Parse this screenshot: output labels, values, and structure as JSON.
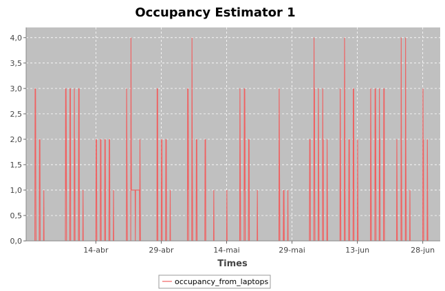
{
  "chart_data": {
    "type": "line",
    "title": "Occupancy Estimator 1",
    "xlabel": "Times",
    "ylabel": "",
    "x_tick_labels": [
      "14-abr",
      "29-abr",
      "14-mai",
      "29-mai",
      "13-jun",
      "28-jun"
    ],
    "y_tick_labels": [
      "0,0",
      "0,5",
      "1,0",
      "1,5",
      "2,0",
      "2,5",
      "3,0",
      "3,5",
      "4,0"
    ],
    "ylim": [
      0,
      4.2
    ],
    "xlim": [
      "2014-03-29",
      "2014-07-02"
    ],
    "grid": true,
    "legend_position": "bottom",
    "background_color": "#c0c0c0",
    "series": [
      {
        "name": "occupancy_from_laptops",
        "color": "#f06060",
        "points": [
          [
            "2014-03-29",
            0
          ],
          [
            "2014-03-30",
            0
          ],
          [
            "2014-03-31",
            0
          ],
          [
            "2014-03-31",
            3
          ],
          [
            "2014-03-31",
            2
          ],
          [
            "2014-03-31",
            3
          ],
          [
            "2014-03-31",
            1
          ],
          [
            "2014-03-31",
            0
          ],
          [
            "2014-04-01",
            0
          ],
          [
            "2014-04-01",
            2
          ],
          [
            "2014-04-01",
            1
          ],
          [
            "2014-04-01",
            2
          ],
          [
            "2014-04-01",
            0
          ],
          [
            "2014-04-02",
            0
          ],
          [
            "2014-04-02",
            1
          ],
          [
            "2014-04-02",
            0
          ],
          [
            "2014-04-07",
            0
          ],
          [
            "2014-04-07",
            3
          ],
          [
            "2014-04-07",
            1
          ],
          [
            "2014-04-07",
            3
          ],
          [
            "2014-04-07",
            2
          ],
          [
            "2014-04-07",
            0
          ],
          [
            "2014-04-08",
            0
          ],
          [
            "2014-04-08",
            3
          ],
          [
            "2014-04-08",
            1
          ],
          [
            "2014-04-08",
            3
          ],
          [
            "2014-04-08",
            0
          ],
          [
            "2014-04-09",
            0
          ],
          [
            "2014-04-09",
            3
          ],
          [
            "2014-04-09",
            1
          ],
          [
            "2014-04-09",
            2
          ],
          [
            "2014-04-09",
            0
          ],
          [
            "2014-04-10",
            0
          ],
          [
            "2014-04-10",
            3
          ],
          [
            "2014-04-10",
            1
          ],
          [
            "2014-04-10",
            3
          ],
          [
            "2014-04-10",
            0
          ],
          [
            "2014-04-11",
            0
          ],
          [
            "2014-04-11",
            1
          ],
          [
            "2014-04-11",
            0
          ],
          [
            "2014-04-14",
            0
          ],
          [
            "2014-04-14",
            2
          ],
          [
            "2014-04-14",
            1
          ],
          [
            "2014-04-14",
            2
          ],
          [
            "2014-04-14",
            0
          ],
          [
            "2014-04-15",
            0
          ],
          [
            "2014-04-15",
            2
          ],
          [
            "2014-04-15",
            1
          ],
          [
            "2014-04-15",
            2
          ],
          [
            "2014-04-15",
            0
          ],
          [
            "2014-04-16",
            0
          ],
          [
            "2014-04-16",
            2
          ],
          [
            "2014-04-16",
            1
          ],
          [
            "2014-04-16",
            2
          ],
          [
            "2014-04-16",
            0
          ],
          [
            "2014-04-17",
            0
          ],
          [
            "2014-04-17",
            2
          ],
          [
            "2014-04-17",
            1
          ],
          [
            "2014-04-17",
            2
          ],
          [
            "2014-04-17",
            0
          ],
          [
            "2014-04-18",
            0
          ],
          [
            "2014-04-18",
            1
          ],
          [
            "2014-04-18",
            0
          ],
          [
            "2014-04-21",
            0
          ],
          [
            "2014-04-21",
            3
          ],
          [
            "2014-04-21",
            2
          ],
          [
            "2014-04-21",
            1
          ],
          [
            "2014-04-21",
            0
          ],
          [
            "2014-04-22",
            0
          ],
          [
            "2014-04-22",
            4
          ],
          [
            "2014-04-22",
            2
          ],
          [
            "2014-04-22",
            1
          ],
          [
            "2014-04-23",
            1
          ],
          [
            "2014-04-23",
            0
          ],
          [
            "2014-04-23",
            1
          ],
          [
            "2014-04-24",
            1
          ],
          [
            "2014-04-24",
            0
          ],
          [
            "2014-04-24",
            2
          ],
          [
            "2014-04-24",
            1
          ],
          [
            "2014-04-24",
            0
          ],
          [
            "2014-04-28",
            0
          ],
          [
            "2014-04-28",
            3
          ],
          [
            "2014-04-28",
            1
          ],
          [
            "2014-04-28",
            3
          ],
          [
            "2014-04-28",
            0
          ],
          [
            "2014-04-29",
            0
          ],
          [
            "2014-04-29",
            2
          ],
          [
            "2014-04-29",
            1
          ],
          [
            "2014-04-29",
            2
          ],
          [
            "2014-04-29",
            0
          ],
          [
            "2014-04-30",
            0
          ],
          [
            "2014-04-30",
            2
          ],
          [
            "2014-04-30",
            1
          ],
          [
            "2014-04-30",
            2
          ],
          [
            "2014-04-30",
            0
          ],
          [
            "2014-05-01",
            0
          ],
          [
            "2014-05-01",
            1
          ],
          [
            "2014-05-01",
            0
          ],
          [
            "2014-05-05",
            0
          ],
          [
            "2014-05-05",
            3
          ],
          [
            "2014-05-05",
            1
          ],
          [
            "2014-05-05",
            3
          ],
          [
            "2014-05-05",
            2
          ],
          [
            "2014-05-05",
            0
          ],
          [
            "2014-05-06",
            0
          ],
          [
            "2014-05-06",
            4
          ],
          [
            "2014-05-06",
            2
          ],
          [
            "2014-05-06",
            1
          ],
          [
            "2014-05-06",
            0
          ],
          [
            "2014-05-07",
            0
          ],
          [
            "2014-05-07",
            2
          ],
          [
            "2014-05-07",
            1
          ],
          [
            "2014-05-07",
            2
          ],
          [
            "2014-05-07",
            0
          ],
          [
            "2014-05-09",
            0
          ],
          [
            "2014-05-09",
            2
          ],
          [
            "2014-05-09",
            1
          ],
          [
            "2014-05-09",
            2
          ],
          [
            "2014-05-09",
            0
          ],
          [
            "2014-05-11",
            0
          ],
          [
            "2014-05-11",
            1
          ],
          [
            "2014-05-11",
            0
          ],
          [
            "2014-05-14",
            0
          ],
          [
            "2014-05-14",
            1
          ],
          [
            "2014-05-14",
            0
          ],
          [
            "2014-05-17",
            0
          ],
          [
            "2014-05-17",
            3
          ],
          [
            "2014-05-17",
            2
          ],
          [
            "2014-05-17",
            1
          ],
          [
            "2014-05-17",
            0
          ],
          [
            "2014-05-18",
            0
          ],
          [
            "2014-05-18",
            3
          ],
          [
            "2014-05-18",
            1
          ],
          [
            "2014-05-18",
            3
          ],
          [
            "2014-05-18",
            2
          ],
          [
            "2014-05-18",
            0
          ],
          [
            "2014-05-19",
            0
          ],
          [
            "2014-05-19",
            2
          ],
          [
            "2014-05-19",
            1
          ],
          [
            "2014-05-19",
            2
          ],
          [
            "2014-05-19",
            0
          ],
          [
            "2014-05-21",
            0
          ],
          [
            "2014-05-21",
            1
          ],
          [
            "2014-05-21",
            0
          ],
          [
            "2014-05-26",
            0
          ],
          [
            "2014-05-26",
            3
          ],
          [
            "2014-05-26",
            2
          ],
          [
            "2014-05-26",
            1
          ],
          [
            "2014-05-26",
            0
          ],
          [
            "2014-05-27",
            0
          ],
          [
            "2014-05-27",
            1
          ],
          [
            "2014-05-27",
            0
          ],
          [
            "2014-05-27",
            1
          ],
          [
            "2014-05-27",
            0
          ],
          [
            "2014-05-28",
            0
          ],
          [
            "2014-05-28",
            1
          ],
          [
            "2014-05-28",
            0
          ],
          [
            "2014-06-02",
            0
          ],
          [
            "2014-06-02",
            2
          ],
          [
            "2014-06-02",
            1
          ],
          [
            "2014-06-02",
            2
          ],
          [
            "2014-06-02",
            0
          ],
          [
            "2014-06-03",
            0
          ],
          [
            "2014-06-03",
            4
          ],
          [
            "2014-06-03",
            2
          ],
          [
            "2014-06-03",
            3
          ],
          [
            "2014-06-03",
            1
          ],
          [
            "2014-06-03",
            0
          ],
          [
            "2014-06-04",
            0
          ],
          [
            "2014-06-04",
            3
          ],
          [
            "2014-06-04",
            2
          ],
          [
            "2014-06-04",
            1
          ],
          [
            "2014-06-04",
            0
          ],
          [
            "2014-06-05",
            0
          ],
          [
            "2014-06-05",
            3
          ],
          [
            "2014-06-05",
            1
          ],
          [
            "2014-06-05",
            2
          ],
          [
            "2014-06-05",
            0
          ],
          [
            "2014-06-06",
            0
          ],
          [
            "2014-06-06",
            2
          ],
          [
            "2014-06-06",
            1
          ],
          [
            "2014-06-06",
            0
          ],
          [
            "2014-06-09",
            0
          ],
          [
            "2014-06-09",
            3
          ],
          [
            "2014-06-09",
            2
          ],
          [
            "2014-06-09",
            1
          ],
          [
            "2014-06-09",
            0
          ],
          [
            "2014-06-10",
            0
          ],
          [
            "2014-06-10",
            4
          ],
          [
            "2014-06-10",
            3
          ],
          [
            "2014-06-10",
            1
          ],
          [
            "2014-06-10",
            0
          ],
          [
            "2014-06-11",
            0
          ],
          [
            "2014-06-11",
            2
          ],
          [
            "2014-06-11",
            1
          ],
          [
            "2014-06-11",
            2
          ],
          [
            "2014-06-11",
            0
          ],
          [
            "2014-06-12",
            0
          ],
          [
            "2014-06-12",
            3
          ],
          [
            "2014-06-12",
            1
          ],
          [
            "2014-06-12",
            3
          ],
          [
            "2014-06-12",
            0
          ],
          [
            "2014-06-13",
            0
          ],
          [
            "2014-06-13",
            2
          ],
          [
            "2014-06-13",
            1
          ],
          [
            "2014-06-13",
            0
          ],
          [
            "2014-06-16",
            0
          ],
          [
            "2014-06-16",
            3
          ],
          [
            "2014-06-16",
            2
          ],
          [
            "2014-06-16",
            1
          ],
          [
            "2014-06-16",
            0
          ],
          [
            "2014-06-17",
            0
          ],
          [
            "2014-06-17",
            3
          ],
          [
            "2014-06-17",
            1
          ],
          [
            "2014-06-17",
            3
          ],
          [
            "2014-06-17",
            2
          ],
          [
            "2014-06-17",
            0
          ],
          [
            "2014-06-18",
            0
          ],
          [
            "2014-06-18",
            3
          ],
          [
            "2014-06-18",
            1
          ],
          [
            "2014-06-18",
            2
          ],
          [
            "2014-06-18",
            0
          ],
          [
            "2014-06-19",
            0
          ],
          [
            "2014-06-19",
            3
          ],
          [
            "2014-06-19",
            1
          ],
          [
            "2014-06-19",
            3
          ],
          [
            "2014-06-19",
            0
          ],
          [
            "2014-06-22",
            0
          ],
          [
            "2014-06-22",
            2
          ],
          [
            "2014-06-22",
            1
          ],
          [
            "2014-06-22",
            0
          ],
          [
            "2014-06-23",
            0
          ],
          [
            "2014-06-23",
            4
          ],
          [
            "2014-06-23",
            2
          ],
          [
            "2014-06-23",
            1
          ],
          [
            "2014-06-23",
            0
          ],
          [
            "2014-06-24",
            0
          ],
          [
            "2014-06-24",
            4
          ],
          [
            "2014-06-24",
            2
          ],
          [
            "2014-06-24",
            1
          ],
          [
            "2014-06-24",
            0
          ],
          [
            "2014-06-25",
            0
          ],
          [
            "2014-06-25",
            1
          ],
          [
            "2014-06-25",
            0
          ],
          [
            "2014-06-28",
            0
          ],
          [
            "2014-06-28",
            3
          ],
          [
            "2014-06-28",
            1
          ],
          [
            "2014-06-28",
            2
          ],
          [
            "2014-06-28",
            0
          ],
          [
            "2014-06-29",
            0
          ],
          [
            "2014-06-29",
            2
          ],
          [
            "2014-06-29",
            1
          ],
          [
            "2014-06-29",
            0
          ],
          [
            "2014-06-30",
            0
          ],
          [
            "2014-07-02",
            0
          ]
        ]
      }
    ]
  }
}
